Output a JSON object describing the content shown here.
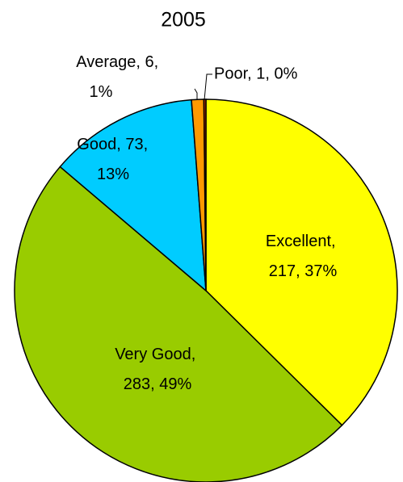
{
  "chart_data": {
    "type": "pie",
    "title": "2005",
    "categories": [
      "Excellent",
      "Very Good",
      "Good",
      "Average",
      "Poor"
    ],
    "values": [
      217,
      283,
      73,
      6,
      1
    ],
    "value_labels": [
      "Excellent, 217, 37%",
      "Very Good, 283, 49%",
      "Good, 73, 13%",
      "Average, 6, 1%",
      "Poor, 1, 0%"
    ],
    "colors": [
      "#ffff00",
      "#99cc00",
      "#00ccff",
      "#ff9900",
      "#cc3300"
    ]
  }
}
